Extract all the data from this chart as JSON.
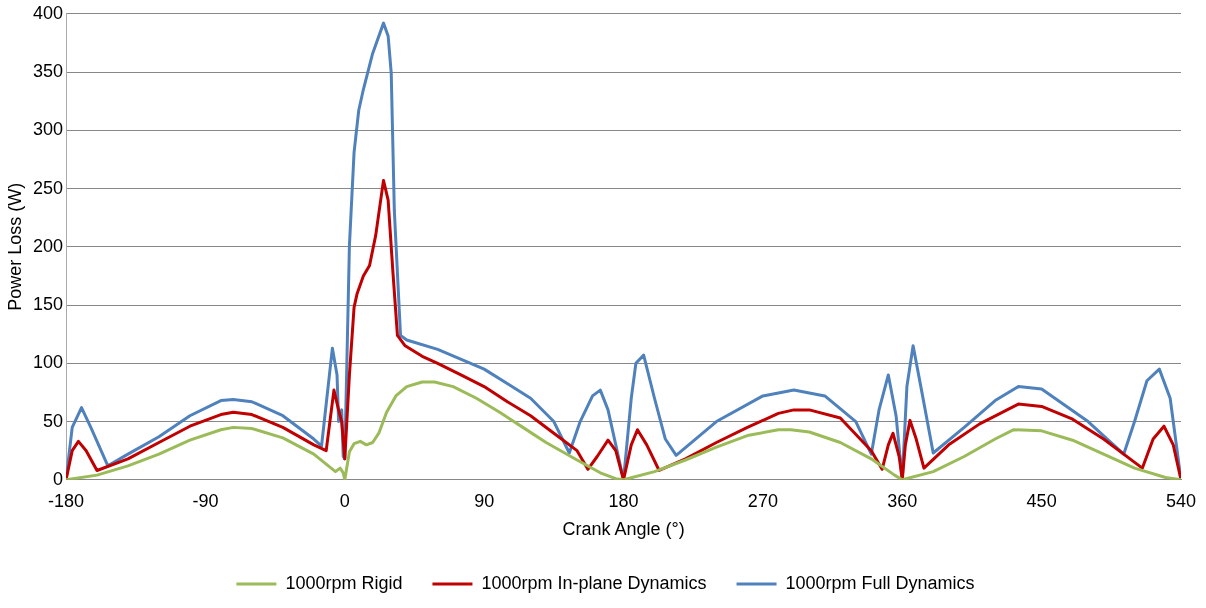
{
  "chart_data": {
    "type": "line",
    "xlabel": "Crank Angle (°)",
    "ylabel": "Power Loss (W)",
    "xlim": [
      -180,
      540
    ],
    "xticks": [
      -180,
      -90,
      0,
      90,
      180,
      270,
      360,
      450,
      540
    ],
    "ylim": [
      0,
      400
    ],
    "yticks": [
      0,
      50,
      100,
      150,
      200,
      250,
      300,
      350,
      400
    ],
    "grid": "y",
    "legend": "bottom",
    "marker": "none",
    "line_style": "solid",
    "series": [
      {
        "name": "1000rpm Rigid",
        "color": "#9bbb59",
        "x": [
          -180,
          -160,
          -140,
          -120,
          -100,
          -80,
          -72,
          -60,
          -40,
          -20,
          -6,
          -3,
          -1,
          0,
          3,
          6,
          10,
          14,
          18,
          22,
          27,
          33,
          40,
          50,
          58,
          70,
          85,
          100,
          115,
          130,
          150,
          165,
          175,
          180,
          200,
          220,
          240,
          260,
          280,
          288,
          300,
          320,
          340,
          355,
          360,
          380,
          400,
          420,
          432,
          450,
          470,
          490,
          510,
          530,
          540
        ],
        "values": [
          0,
          4,
          12,
          22,
          34,
          43,
          45,
          44,
          36,
          22,
          7,
          10,
          6,
          0,
          24,
          31,
          33,
          30,
          32,
          40,
          58,
          72,
          80,
          84,
          84,
          80,
          70,
          58,
          45,
          32,
          17,
          6,
          1,
          0,
          7,
          17,
          28,
          38,
          43,
          43,
          41,
          32,
          18,
          4,
          0,
          7,
          20,
          35,
          43,
          42,
          34,
          22,
          10,
          2,
          0
        ]
      },
      {
        "name": "1000rpm In-plane Dynamics",
        "color": "#c00000",
        "x": [
          -180,
          -176,
          -172,
          -167,
          -160,
          -140,
          -120,
          -100,
          -80,
          -72,
          -60,
          -40,
          -20,
          -12,
          -7,
          -4,
          -2,
          0,
          3,
          6,
          8,
          12,
          16,
          20,
          25,
          28,
          31,
          34,
          39,
          50,
          60,
          75,
          90,
          105,
          120,
          135,
          150,
          157,
          163,
          170,
          175,
          180,
          185,
          189,
          195,
          203,
          220,
          240,
          260,
          280,
          290,
          300,
          320,
          340,
          347,
          351,
          354,
          358,
          360,
          362,
          365,
          369,
          374,
          390,
          410,
          435,
          450,
          470,
          490,
          515,
          522,
          529,
          535,
          540
        ],
        "values": [
          0,
          25,
          33,
          25,
          8,
          18,
          32,
          46,
          56,
          58,
          56,
          45,
          30,
          25,
          77,
          60,
          50,
          18,
          90,
          148,
          160,
          175,
          184,
          210,
          257,
          240,
          180,
          124,
          115,
          106,
          100,
          90,
          80,
          67,
          55,
          40,
          25,
          9,
          20,
          34,
          25,
          0,
          30,
          43,
          30,
          8,
          18,
          32,
          45,
          57,
          60,
          60,
          53,
          25,
          9,
          30,
          40,
          20,
          0,
          30,
          51,
          35,
          10,
          30,
          48,
          65,
          63,
          52,
          35,
          10,
          35,
          46,
          30,
          0
        ]
      },
      {
        "name": "1000rpm Full Dynamics",
        "color": "#4f81bd",
        "x": [
          -180,
          -176,
          -170,
          -164,
          -153,
          -140,
          -120,
          -100,
          -80,
          -72,
          -60,
          -40,
          -20,
          -15,
          -8,
          -5,
          -4,
          -2,
          -1,
          0,
          3,
          6,
          9,
          12,
          18,
          25,
          28,
          30,
          32,
          36,
          40,
          60,
          90,
          120,
          135,
          145,
          152,
          160,
          165,
          170,
          175,
          180,
          185,
          188,
          193,
          200,
          207,
          214,
          240,
          270,
          290,
          310,
          330,
          340,
          345,
          351,
          356,
          360,
          363,
          367,
          372,
          380,
          400,
          420,
          435,
          450,
          480,
          503,
          510,
          518,
          526,
          533,
          540
        ],
        "values": [
          0,
          45,
          62,
          45,
          12,
          22,
          37,
          55,
          68,
          69,
          67,
          55,
          35,
          29,
          113,
          90,
          50,
          60,
          20,
          18,
          201,
          281,
          317,
          335,
          366,
          392,
          381,
          349,
          231,
          124,
          120,
          112,
          95,
          70,
          50,
          23,
          50,
          72,
          77,
          60,
          30,
          0,
          70,
          100,
          107,
          70,
          35,
          21,
          50,
          72,
          77,
          72,
          50,
          22,
          60,
          90,
          55,
          0,
          80,
          115,
          80,
          23,
          45,
          68,
          80,
          78,
          50,
          22,
          50,
          85,
          95,
          70,
          0
        ]
      }
    ]
  }
}
